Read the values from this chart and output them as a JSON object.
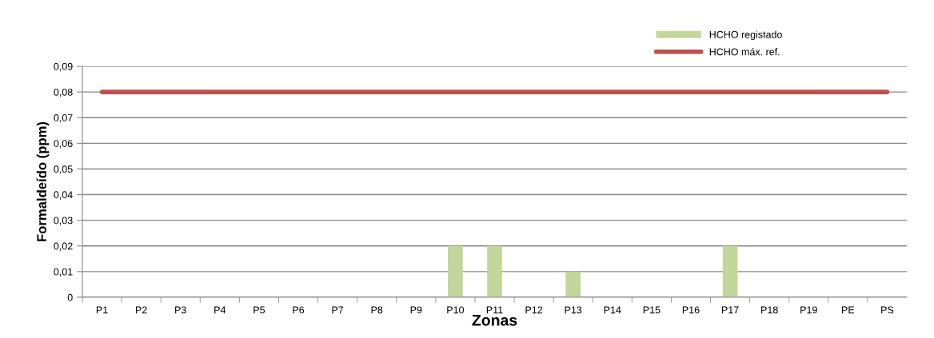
{
  "chart_data": {
    "type": "bar",
    "xlabel": "Zonas",
    "ylabel": "Formaldeído (ppm)",
    "categories": [
      "P1",
      "P2",
      "P3",
      "P4",
      "P5",
      "P6",
      "P7",
      "P8",
      "P9",
      "P10",
      "P11",
      "P12",
      "P13",
      "P14",
      "P15",
      "P16",
      "P17",
      "P18",
      "P19",
      "PE",
      "PS"
    ],
    "series": [
      {
        "name": "HCHO registado",
        "color": "#c3d69b",
        "values": [
          0,
          0,
          0,
          0,
          0,
          0,
          0,
          0,
          0,
          0.02,
          0.02,
          0,
          0.01,
          0,
          0,
          0,
          0.02,
          0,
          0,
          0,
          0
        ]
      },
      {
        "name": "HCHO máx. ref.",
        "type": "line",
        "color": "#c0504d",
        "values": [
          0.08,
          0.08,
          0.08,
          0.08,
          0.08,
          0.08,
          0.08,
          0.08,
          0.08,
          0.08,
          0.08,
          0.08,
          0.08,
          0.08,
          0.08,
          0.08,
          0.08,
          0.08,
          0.08,
          0.08,
          0.08
        ]
      }
    ],
    "ylim": [
      0,
      0.09
    ],
    "yticks": [
      0,
      {
        "value": 0.01,
        "label": "0,01"
      },
      {
        "value": 0.02,
        "label": "0,02"
      },
      {
        "value": 0.03,
        "label": "0,03"
      },
      {
        "value": 0.04,
        "label": "0,04"
      },
      {
        "value": 0.05,
        "label": "0,05"
      },
      {
        "value": 0.06,
        "label": "0,06"
      },
      {
        "value": 0.07,
        "label": "0,07"
      },
      {
        "value": 0.08,
        "label": "0,08"
      },
      {
        "value": 0.09,
        "label": "0,09"
      }
    ],
    "grid": "y",
    "legend": "top right",
    "marker": "none",
    "line_style": "solid"
  }
}
